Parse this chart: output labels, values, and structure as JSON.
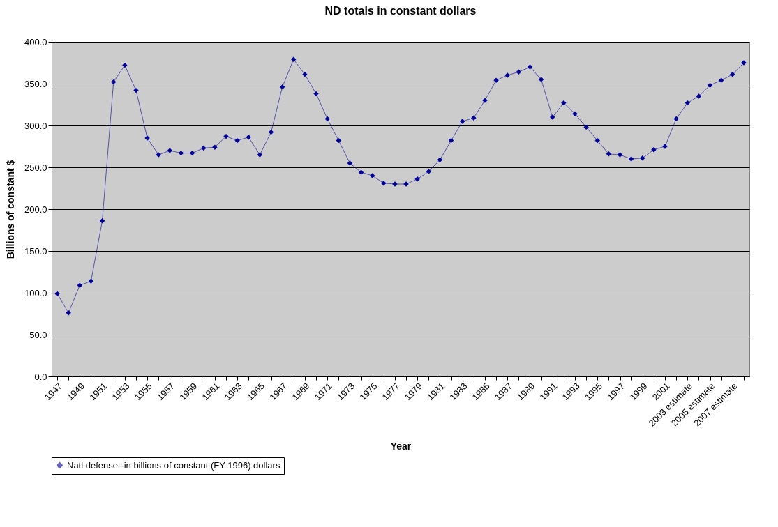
{
  "chart_data": {
    "type": "line",
    "title": "ND totals in constant dollars",
    "xlabel": "Year",
    "ylabel": "Billions of constant $",
    "categories": [
      "1947",
      null,
      "1949",
      null,
      "1951",
      null,
      "1953",
      null,
      "1955",
      null,
      "1957",
      null,
      "1959",
      null,
      "1961",
      null,
      "1963",
      null,
      "1965",
      null,
      "1967",
      null,
      "1969",
      null,
      "1971",
      null,
      "1973",
      null,
      "1975",
      null,
      "1977",
      null,
      "1979",
      null,
      "1981",
      null,
      "1983",
      null,
      "1985",
      null,
      "1987",
      null,
      "1989",
      null,
      "1991",
      null,
      "1993",
      null,
      "1995",
      null,
      "1997",
      null,
      "1999",
      null,
      "2001",
      null,
      "2003 estimate",
      null,
      "2005 estimate",
      null,
      "2007 estimate",
      null
    ],
    "series": [
      {
        "name": "Natl defense--in billions of constant (FY 1996) dollars",
        "color": "#000099",
        "values": [
          99,
          76,
          109,
          114,
          186,
          352,
          372,
          342,
          285,
          265,
          270,
          267,
          267,
          273,
          274,
          287,
          282,
          286,
          265,
          292,
          346,
          379,
          361,
          338,
          308,
          282,
          255,
          244,
          240,
          231,
          230,
          230,
          236,
          245,
          259,
          282,
          305,
          309,
          330,
          354,
          360,
          364,
          370,
          355,
          310,
          327,
          314,
          298,
          282,
          266,
          265,
          260,
          261,
          271,
          275,
          308,
          327,
          335,
          348,
          354,
          361,
          375
        ]
      }
    ],
    "ylim": [
      0,
      400
    ],
    "yticks": [
      {
        "value": 0,
        "label": "0.0"
      },
      {
        "value": 50,
        "label": "50.0"
      },
      {
        "value": 100,
        "label": "100.0"
      },
      {
        "value": 150,
        "label": "150.0"
      },
      {
        "value": 200,
        "label": "200.0"
      },
      {
        "value": 250,
        "label": "250.0"
      },
      {
        "value": 300,
        "label": "300.0"
      },
      {
        "value": 350,
        "label": "350.0"
      },
      {
        "value": 400,
        "label": "400.0"
      }
    ],
    "grid": "y",
    "legend": "bottom",
    "marker": "diamond",
    "line_style": "solid"
  }
}
